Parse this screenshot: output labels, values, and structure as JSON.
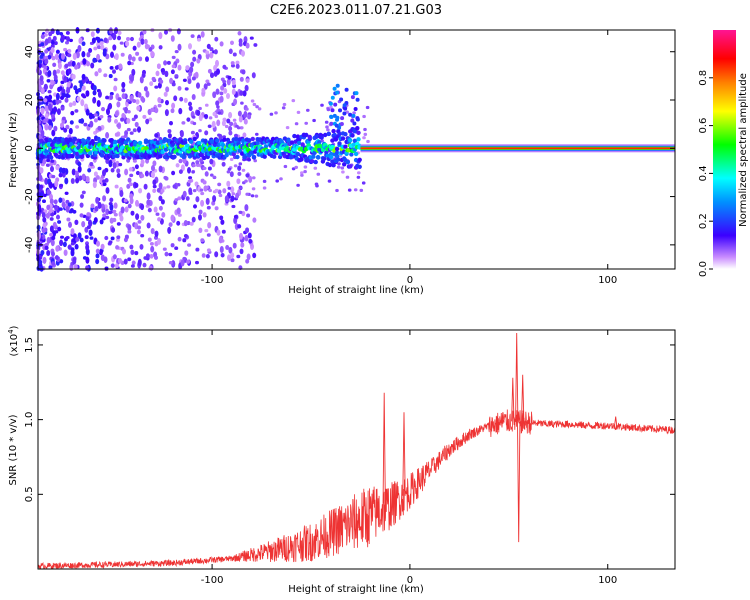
{
  "title": "C2E6.2023.011.07.21.G03",
  "chart_data": [
    {
      "type": "heatmap",
      "xlabel": "Height of straight line (km)",
      "ylabel": "Frequency (Hz)",
      "xlim": [
        -188,
        134
      ],
      "ylim": [
        -50,
        49
      ],
      "xticks": [
        -100,
        0,
        100
      ],
      "xtick_labels": [
        "-100",
        "0",
        "100"
      ],
      "yticks": [
        -40,
        -20,
        0,
        20,
        40
      ],
      "ytick_labels": [
        "-40",
        "-20",
        "0",
        "20",
        "40"
      ],
      "colorbar": {
        "label": "Normalized spectral amplitude",
        "range": [
          0,
          1
        ],
        "ticks": [
          0.0,
          0.2,
          0.4,
          0.6,
          0.8
        ],
        "tick_labels": [
          "0.0",
          "0.2",
          "0.4",
          "0.6",
          "0.8"
        ]
      },
      "ridge": {
        "frequency": 0,
        "spread_region": [
          -188,
          -25
        ],
        "narrow_region": [
          -25,
          134
        ],
        "peak_amplitude": 0.85
      },
      "grid": false
    },
    {
      "type": "line",
      "xlabel": "Height of straight line (km)",
      "ylabel": "SNR (10 * v/v)",
      "y_multiplier": "(x10",
      "y_multiplier_exp": "4",
      "y_multiplier_close": ")",
      "xlim": [
        -188,
        134
      ],
      "ylim": [
        0,
        1.6
      ],
      "xticks": [
        -100,
        0,
        100
      ],
      "xtick_labels": [
        "-100",
        "0",
        "100"
      ],
      "yticks": [
        0.5,
        1.0,
        1.5
      ],
      "ytick_labels": [
        "0.5",
        "1.0",
        "1.5"
      ],
      "color": "#ee3333",
      "series_shape": {
        "x": [
          -188,
          -150,
          -120,
          -90,
          -70,
          -50,
          -40,
          -30,
          -20,
          -10,
          0,
          10,
          20,
          30,
          40,
          50,
          60,
          70,
          80,
          90,
          100,
          110,
          120,
          134
        ],
        "y": [
          0.02,
          0.03,
          0.04,
          0.07,
          0.12,
          0.18,
          0.24,
          0.3,
          0.36,
          0.42,
          0.52,
          0.66,
          0.8,
          0.9,
          0.96,
          0.99,
          0.98,
          0.97,
          0.97,
          0.96,
          0.96,
          0.95,
          0.94,
          0.93
        ]
      },
      "spikes": [
        {
          "x": -13,
          "y": 1.18
        },
        {
          "x": -3,
          "y": 1.05
        },
        {
          "x": 47,
          "y": 1.05
        },
        {
          "x": 52,
          "y": 1.28
        },
        {
          "x": 54,
          "y": 1.58
        },
        {
          "x": 55,
          "y": 0.18
        },
        {
          "x": 57,
          "y": 1.3
        },
        {
          "x": 104,
          "y": 1.02
        }
      ]
    }
  ]
}
